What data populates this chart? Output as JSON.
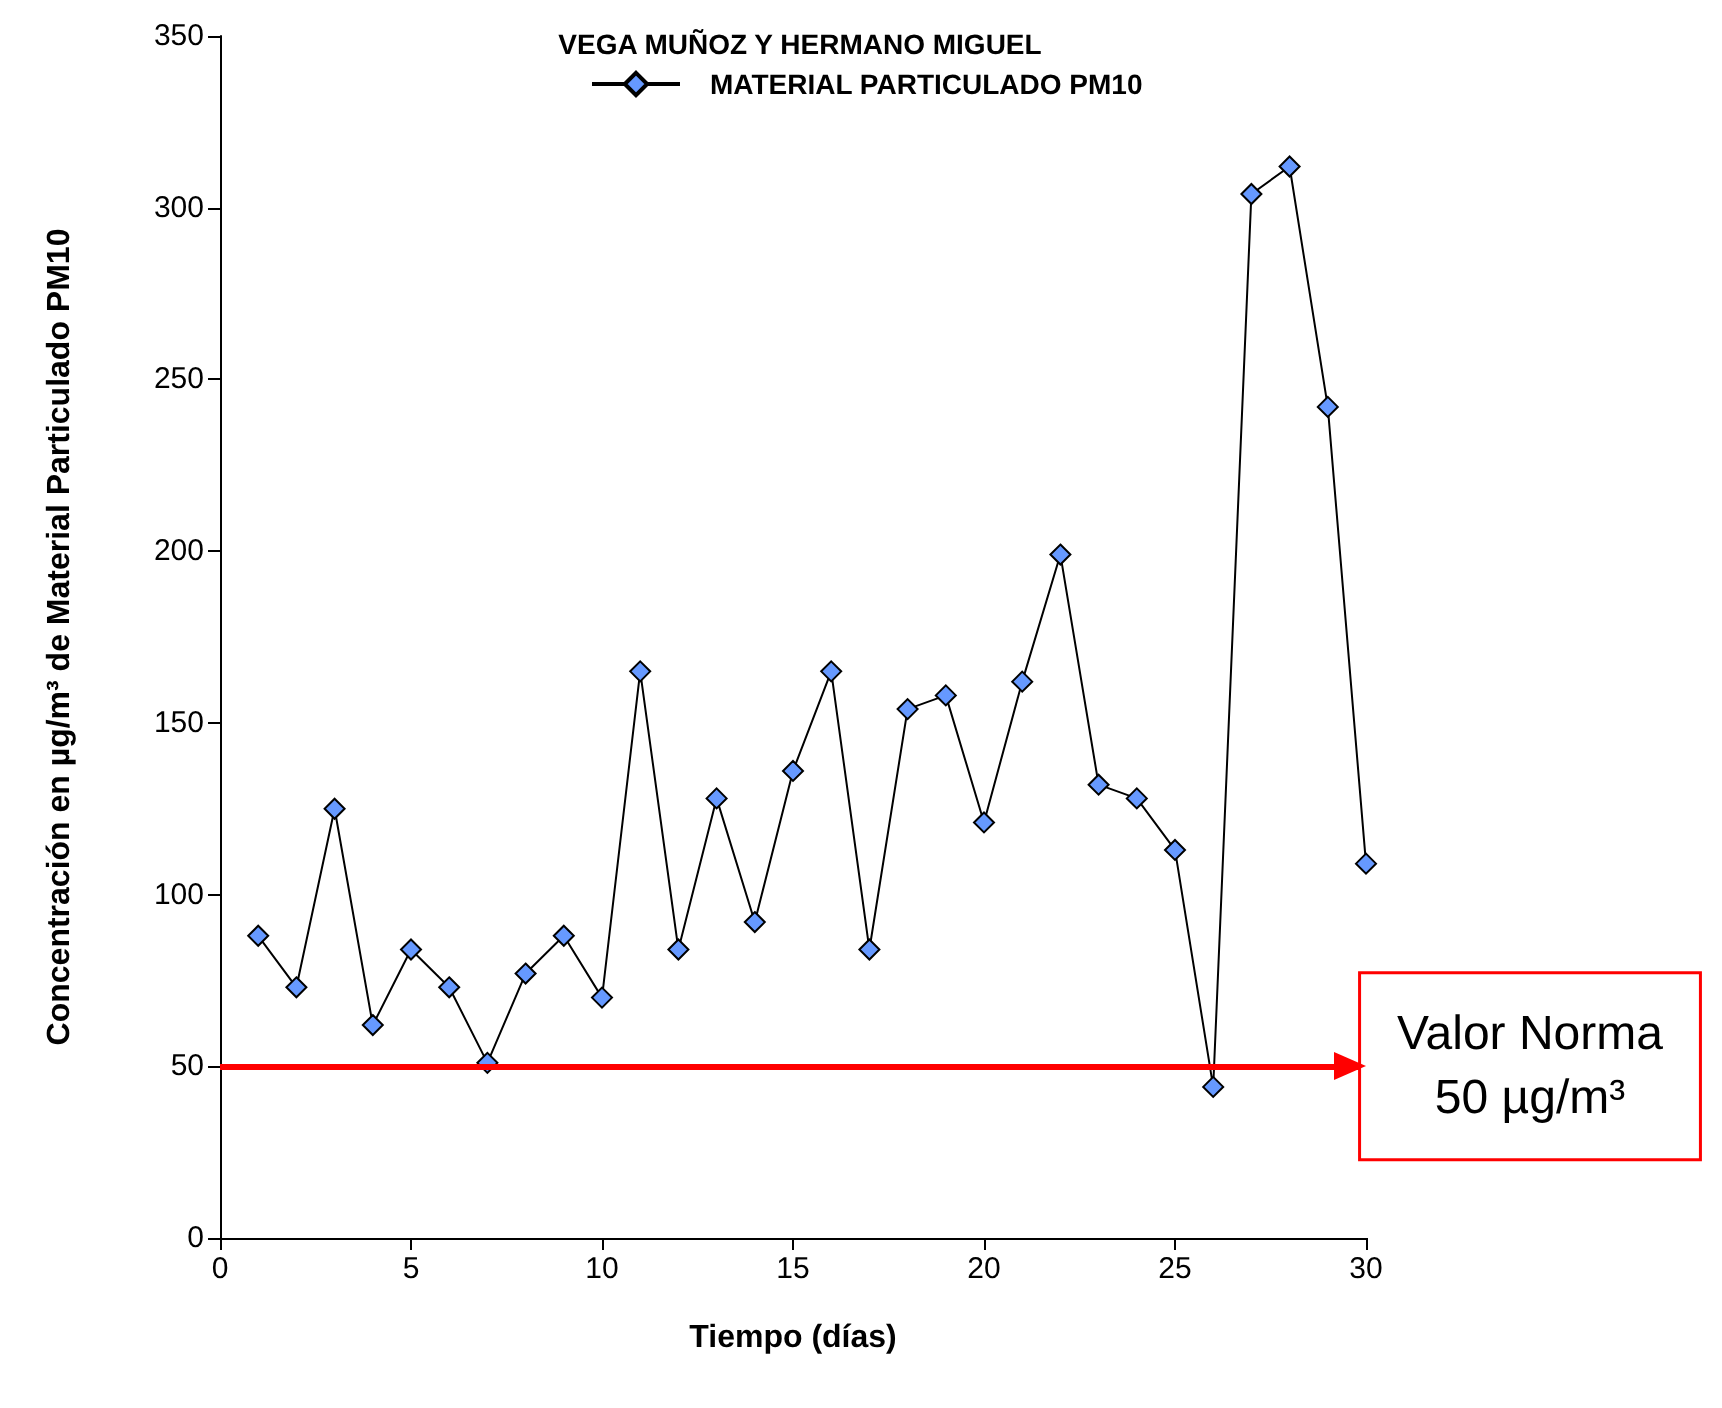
{
  "chart_data": {
    "type": "line",
    "title": "VEGA MUÑOZ Y HERMANO MIGUEL",
    "xlabel": "Tiempo (días)",
    "ylabel": "Concentración en µg/m³ de Material Particulado PM10",
    "x": [
      1,
      2,
      3,
      4,
      5,
      6,
      7,
      8,
      9,
      10,
      11,
      12,
      13,
      14,
      15,
      16,
      17,
      18,
      19,
      20,
      21,
      22,
      23,
      24,
      25,
      26,
      27,
      28,
      29,
      30
    ],
    "series": [
      {
        "name": "MATERIAL PARTICULADO PM10",
        "color": "#6699ff",
        "values": [
          88,
          73,
          125,
          62,
          84,
          73,
          51,
          77,
          88,
          70,
          165,
          84,
          128,
          92,
          136,
          165,
          84,
          154,
          158,
          121,
          162,
          199,
          132,
          128,
          113,
          44,
          304,
          312,
          242,
          109
        ]
      }
    ],
    "xlim": [
      0,
      30
    ],
    "xticks": [
      0,
      5,
      10,
      15,
      20,
      25,
      30
    ],
    "ylim": [
      0,
      350
    ],
    "yticks": [
      0,
      50,
      100,
      150,
      200,
      250,
      300,
      350
    ],
    "ref_lines": [
      {
        "axis": "y",
        "value": 50,
        "label": "Valor Norma\n50 µg/m³",
        "color": "#ff0000",
        "line_style": "solid"
      }
    ],
    "grid": false,
    "legend": "top",
    "marker": "diamond",
    "line_style": "solid"
  }
}
